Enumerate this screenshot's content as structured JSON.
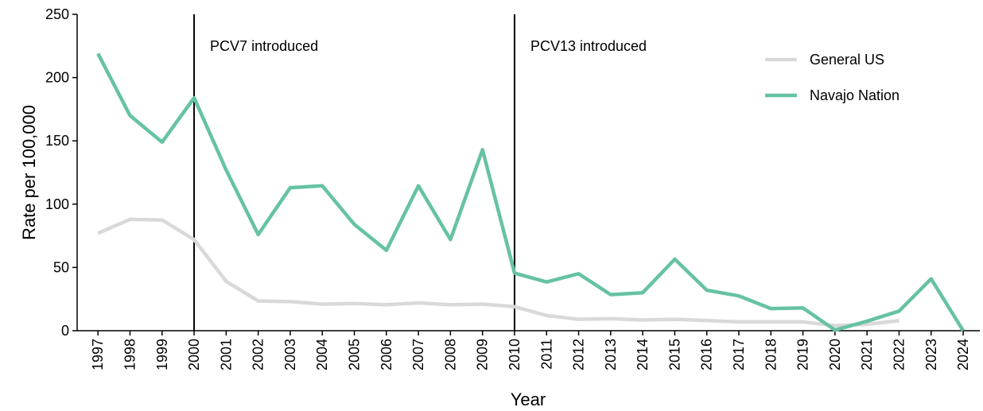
{
  "chart_data": {
    "type": "line",
    "x": [
      1997,
      1998,
      1999,
      2000,
      2001,
      2002,
      2003,
      2004,
      2005,
      2006,
      2007,
      2008,
      2009,
      2010,
      2011,
      2012,
      2013,
      2014,
      2015,
      2016,
      2017,
      2018,
      2019,
      2020,
      2021,
      2022,
      2023,
      2024
    ],
    "series": [
      {
        "name": "General US",
        "color": "#d9d9d9",
        "values": [
          77,
          88,
          87.5,
          72,
          39,
          23.5,
          23,
          21,
          21.5,
          20.5,
          22,
          20.5,
          21,
          19,
          12,
          9,
          9.5,
          8.5,
          9,
          8,
          7,
          7,
          7,
          4,
          5,
          8,
          null,
          null
        ]
      },
      {
        "name": "Navajo Nation",
        "color": "#66c2a5",
        "values": [
          219,
          170,
          149,
          184,
          127,
          76,
          113,
          114.5,
          84,
          63.5,
          114.5,
          72,
          143,
          45.5,
          38.5,
          45,
          28.5,
          30,
          56.5,
          32,
          27.5,
          17.5,
          18,
          0.5,
          7.5,
          15.5,
          41,
          0
        ]
      }
    ],
    "annotations": [
      {
        "x": 2000,
        "text": "PCV7 introduced"
      },
      {
        "x": 2010,
        "text": "PCV13 introduced"
      }
    ],
    "xlabel": "Year",
    "ylabel": "Rate per 100,000",
    "xlim": [
      1996.35,
      2024.52
    ],
    "xticks": [
      1997,
      1998,
      1999,
      2000,
      2001,
      2002,
      2003,
      2004,
      2005,
      2006,
      2007,
      2008,
      2009,
      2010,
      2011,
      2012,
      2013,
      2014,
      2015,
      2016,
      2017,
      2018,
      2019,
      2020,
      2021,
      2022,
      2023,
      2024
    ],
    "ylim": [
      0,
      250
    ],
    "yticks": [
      0,
      50,
      100,
      150,
      200,
      250
    ],
    "legend": "top-right"
  }
}
